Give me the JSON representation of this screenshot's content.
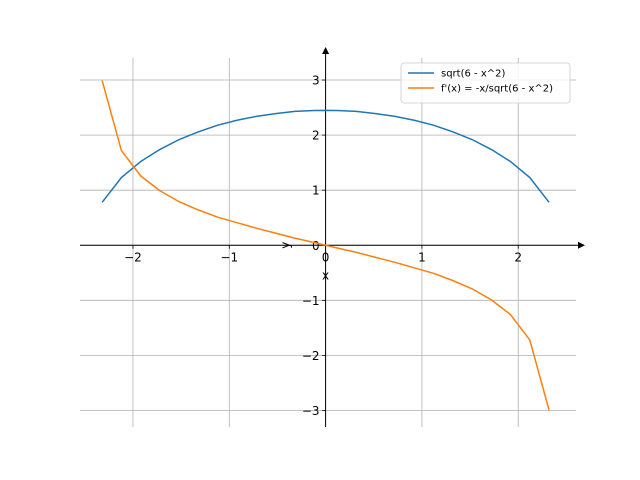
{
  "chart_data": {
    "type": "line",
    "xlabel": "x",
    "ylabel": "y",
    "xlim": [
      -2.55,
      2.6
    ],
    "ylim": [
      -3.3,
      3.4
    ],
    "grid": true,
    "legend_position": "top-right",
    "axis_line_color": "#000000",
    "grid_color": "#b0b0b0",
    "x_ticks": [
      {
        "value": -2,
        "label": "−2"
      },
      {
        "value": -1,
        "label": "−1"
      },
      {
        "value": 0,
        "label": "0"
      },
      {
        "value": 1,
        "label": "1"
      },
      {
        "value": 2,
        "label": "2"
      }
    ],
    "y_ticks": [
      {
        "value": -3,
        "label": "−3"
      },
      {
        "value": -2,
        "label": "−2"
      },
      {
        "value": -1,
        "label": "−1"
      },
      {
        "value": 0,
        "label": "0"
      },
      {
        "value": 1,
        "label": "1"
      },
      {
        "value": 2,
        "label": "2"
      },
      {
        "value": 3,
        "label": "3"
      }
    ],
    "series": [
      {
        "name": "sqrt(6 - x^2)",
        "color": "#1f77b4",
        "x": [
          -2.32,
          -2.12,
          -1.92,
          -1.72,
          -1.52,
          -1.32,
          -1.12,
          -0.92,
          -0.72,
          -0.52,
          -0.32,
          -0.12,
          0.0,
          0.12,
          0.32,
          0.52,
          0.72,
          0.92,
          1.12,
          1.32,
          1.52,
          1.72,
          1.92,
          2.12,
          2.32
        ],
        "y": [
          0.78,
          1.23,
          1.52,
          1.74,
          1.92,
          2.06,
          2.18,
          2.27,
          2.34,
          2.39,
          2.43,
          2.446,
          2.449,
          2.446,
          2.43,
          2.39,
          2.34,
          2.27,
          2.18,
          2.06,
          1.92,
          1.74,
          1.52,
          1.23,
          0.78
        ]
      },
      {
        "name": "f'(x) = -x/sqrt(6 - x^2)",
        "color": "#ff7f0e",
        "x": [
          -2.32,
          -2.12,
          -1.92,
          -1.72,
          -1.52,
          -1.32,
          -1.12,
          -0.92,
          -0.72,
          -0.52,
          -0.32,
          -0.12,
          0.0,
          0.12,
          0.32,
          0.52,
          0.72,
          0.92,
          1.12,
          1.32,
          1.52,
          1.72,
          1.92,
          2.12,
          2.32
        ],
        "y": [
          2.99,
          1.72,
          1.26,
          0.99,
          0.79,
          0.64,
          0.51,
          0.41,
          0.31,
          0.22,
          0.13,
          0.05,
          0.0,
          -0.05,
          -0.13,
          -0.22,
          -0.31,
          -0.41,
          -0.51,
          -0.64,
          -0.79,
          -0.99,
          -1.26,
          -1.72,
          -2.99
        ]
      }
    ]
  }
}
